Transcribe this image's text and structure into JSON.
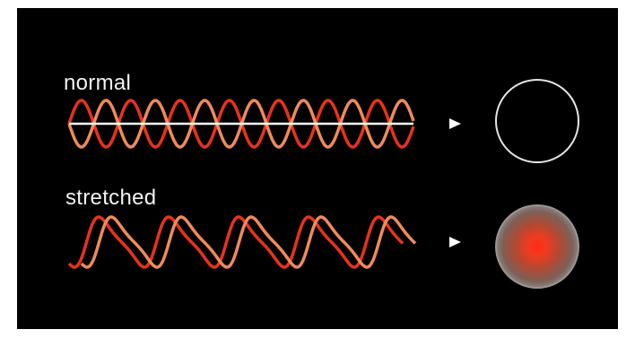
{
  "labels": {
    "normal": "normal",
    "stretched": "stretched"
  },
  "icons": {
    "normal_arrow": "play-triangle-icon",
    "stretched_arrow": "play-triangle-icon",
    "normal_result": "hollow-circle-icon",
    "stretched_result": "glowing-red-sphere-icon"
  },
  "colors": {
    "background": "#000000",
    "wave_dark": "#e8321b",
    "wave_light": "#f08a5a",
    "axis": "#ffffff",
    "arrow": "#ffffff",
    "sphere_core": "#ff2a14",
    "sphere_edge": "#7a7470"
  }
}
